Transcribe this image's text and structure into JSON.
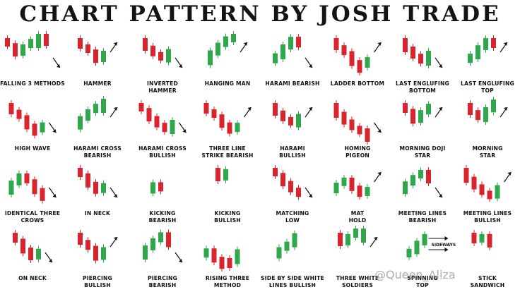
{
  "title": "CHART PATTERN BY JOSH TRADE",
  "watermark": "@Queen_Aliza",
  "sideways_label": "SIDEWAYS",
  "colors": {
    "bull": "#2ea84a",
    "bear": "#d9232d",
    "arrow": "#111111"
  },
  "patterns": [
    {
      "label": "FALLING 3 METHODS",
      "candles": "RRGGGR",
      "arrow": "down"
    },
    {
      "label": "HAMMER",
      "candles": "RRRG",
      "arrow": "up"
    },
    {
      "label": "INVERTED\nHAMMER",
      "candles": "RRRG",
      "arrow": "down"
    },
    {
      "label": "HANGING MAN",
      "candles": "GGGG",
      "arrow": "up"
    },
    {
      "label": "HARAMI BEARISH",
      "candles": "GGGR",
      "arrow": "down"
    },
    {
      "label": "LADDER BOTTOM",
      "candles": "RRRRG",
      "arrow": "up"
    },
    {
      "label": "LAST ENGLUFING\nBOTTOM",
      "candles": "RRRG",
      "arrow": "down"
    },
    {
      "label": "LAST ENGLUFING\nTOP",
      "candles": "GGGR",
      "arrow": "up"
    },
    {
      "label": "HIGH WAVE",
      "candles": "RRRRG",
      "arrow": "down"
    },
    {
      "label": "HARAMI CROSS\nBEARISH",
      "candles": "GGGG",
      "arrow": "up"
    },
    {
      "label": "HARAMI CROSS\nBULLISH",
      "candles": "RRRRG",
      "arrow": "down"
    },
    {
      "label": "THREE LINE\nSTRIKE BEARISH",
      "candles": "RRRRG",
      "arrow": "up"
    },
    {
      "label": "HARAMI\nBULLISH",
      "candles": "RRRG",
      "arrow": "up"
    },
    {
      "label": "HOMING\nPIGEON",
      "candles": "RRRRR",
      "arrow": "down"
    },
    {
      "label": "MORNING DOJI\nSTAR",
      "candles": "RRGG",
      "arrow": "up"
    },
    {
      "label": "MORNING\nSTAR",
      "candles": "RRGG",
      "arrow": "up"
    },
    {
      "label": "IDENTICAL THREE\nCROWS",
      "candles": "GGRRR",
      "arrow": "down"
    },
    {
      "label": "IN NECK",
      "candles": "RRRG",
      "arrow": "down"
    },
    {
      "label": "KICKING\nBEARISH",
      "candles": "GR",
      "arrow": "none"
    },
    {
      "label": "KICKING\nBULLISH",
      "candles": "RG",
      "arrow": "none"
    },
    {
      "label": "MATCHING\nLOW",
      "candles": "RRRR",
      "arrow": "down"
    },
    {
      "label": "MAT\nHOLD",
      "candles": "GGRRG",
      "arrow": "up"
    },
    {
      "label": "MEETING LINES\nBEARISH",
      "candles": "GGGR",
      "arrow": "down"
    },
    {
      "label": "MEETING LINES\nBULLISH",
      "candles": "RRRRG",
      "arrow": "up"
    },
    {
      "label": "ON NECK",
      "candles": "RRRG",
      "arrow": "down"
    },
    {
      "label": "PIERCING\nBULLISH",
      "candles": "RRRG",
      "arrow": "up"
    },
    {
      "label": "PIERCING\nBEARISH",
      "candles": "GGGR",
      "arrow": "down"
    },
    {
      "label": "RISING THREE\nMETHOD",
      "candles": "GRRRG",
      "arrow": "none"
    },
    {
      "label": "SIDE BY SIDE WHITE\nLINES BULLISH",
      "candles": "GGG",
      "arrow": "none"
    },
    {
      "label": "THREE WHITE\nSOLDIERS",
      "candles": "RGGG",
      "arrow": "up"
    },
    {
      "label": "SPINNING\nTOP",
      "candles": "GGG",
      "arrow": "sideways"
    },
    {
      "label": "STICK\nSANDWICH",
      "candles": "RGR",
      "arrow": "none"
    }
  ]
}
